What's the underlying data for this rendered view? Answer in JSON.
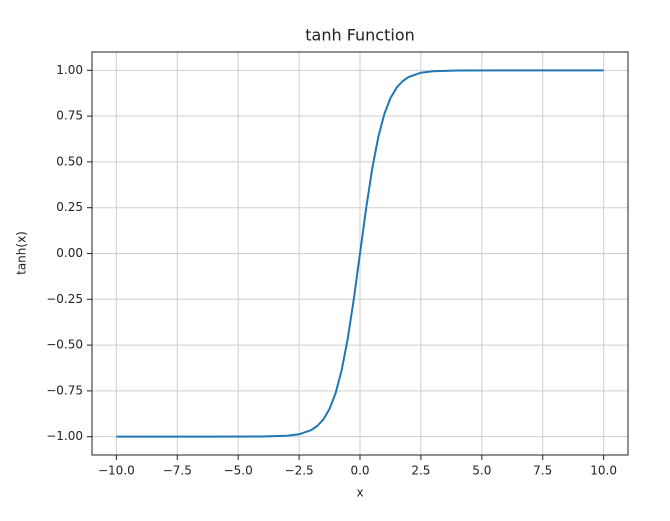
{
  "chart_data": {
    "type": "line",
    "title": "tanh Function",
    "x_label": "x",
    "y_label": "tanh(x)",
    "x": [
      -10,
      -8,
      -6,
      -4,
      -3,
      -2.5,
      -2,
      -1.75,
      -1.5,
      -1.25,
      -1,
      -0.75,
      -0.5,
      -0.25,
      0,
      0.25,
      0.5,
      0.75,
      1,
      1.25,
      1.5,
      1.75,
      2,
      2.5,
      3,
      4,
      6,
      8,
      10
    ],
    "series": [
      {
        "name": "tanh(x)",
        "color": "#1f77b4",
        "values": [
          -1.0,
          -1.0,
          -1.0,
          -0.999,
          -0.995,
          -0.987,
          -0.964,
          -0.941,
          -0.905,
          -0.848,
          -0.762,
          -0.635,
          -0.462,
          -0.245,
          0,
          0.245,
          0.462,
          0.635,
          0.762,
          0.848,
          0.905,
          0.941,
          0.964,
          0.987,
          0.995,
          0.999,
          1.0,
          1.0,
          1.0
        ]
      }
    ],
    "xlim": [
      -11,
      11
    ],
    "ylim": [
      -1.1,
      1.1
    ],
    "xticks": [
      {
        "value": -10,
        "label": "−10.0"
      },
      {
        "value": -7.5,
        "label": "−7.5"
      },
      {
        "value": -5,
        "label": "−5.0"
      },
      {
        "value": -2.5,
        "label": "−2.5"
      },
      {
        "value": 0,
        "label": "0.0"
      },
      {
        "value": 2.5,
        "label": "2.5"
      },
      {
        "value": 5,
        "label": "5.0"
      },
      {
        "value": 7.5,
        "label": "7.5"
      },
      {
        "value": 10,
        "label": "10.0"
      }
    ],
    "yticks": [
      {
        "value": -1,
        "label": "−1.00"
      },
      {
        "value": -0.75,
        "label": "−0.75"
      },
      {
        "value": -0.5,
        "label": "−0.50"
      },
      {
        "value": -0.25,
        "label": "−0.25"
      },
      {
        "value": 0,
        "label": "0.00"
      },
      {
        "value": 0.25,
        "label": "0.25"
      },
      {
        "value": 0.5,
        "label": "0.50"
      },
      {
        "value": 0.75,
        "label": "0.75"
      },
      {
        "value": 1,
        "label": "1.00"
      }
    ],
    "grid": true
  }
}
